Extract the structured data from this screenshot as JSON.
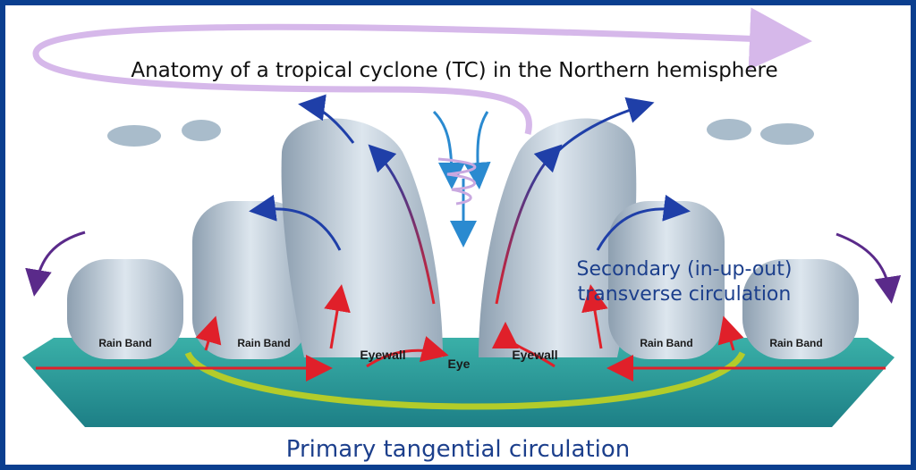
{
  "header": {
    "title": "Anatomy of a tropical cyclone (TC) in the Northern hemisphere"
  },
  "labels": {
    "rain_bands": [
      "Rain Band",
      "Rain Band",
      "Rain Band",
      "Rain Band"
    ],
    "eyewalls": [
      "Eyewall",
      "Eyewall"
    ],
    "eye": "Eye"
  },
  "annotations": {
    "secondary": [
      "Secondary (in-up-out)",
      "transverse circulation"
    ],
    "primary": "Primary tangential circulation"
  }
}
